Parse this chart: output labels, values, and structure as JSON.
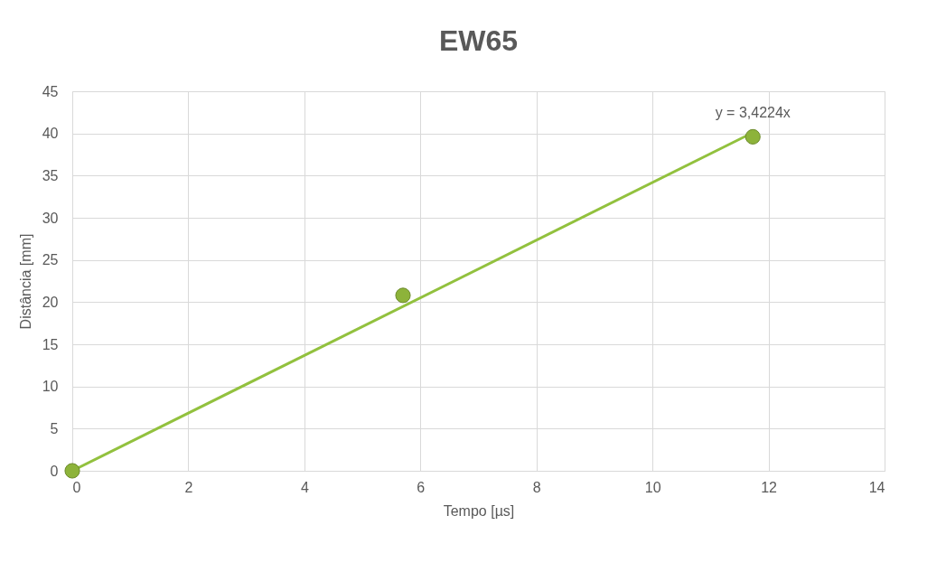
{
  "chart_data": {
    "type": "scatter",
    "title": "EW65",
    "xlabel": "Tempo [µs]",
    "ylabel": "Distância [mm]",
    "series": [
      {
        "color": "#8db33a",
        "x": [
          0,
          5.7,
          11.73
        ],
        "values": [
          0,
          20.8,
          39.6
        ],
        "marker": "circle"
      },
      {
        "type": "line",
        "color": "#92c13e",
        "x": [
          0,
          11.73
        ],
        "values": [
          0,
          40.1
        ],
        "line_style": "solid",
        "marker": "none"
      }
    ],
    "annotations": [
      {
        "text": "y = 3,4224x",
        "x": 11.73,
        "y": 40.1
      }
    ],
    "xlim": [
      0,
      14
    ],
    "xticks": [
      0,
      2,
      4,
      6,
      8,
      10,
      12,
      14
    ],
    "ylim": [
      0,
      45
    ],
    "yticks": [
      0,
      5,
      10,
      15,
      20,
      25,
      30,
      35,
      40,
      45
    ],
    "grid": true
  }
}
